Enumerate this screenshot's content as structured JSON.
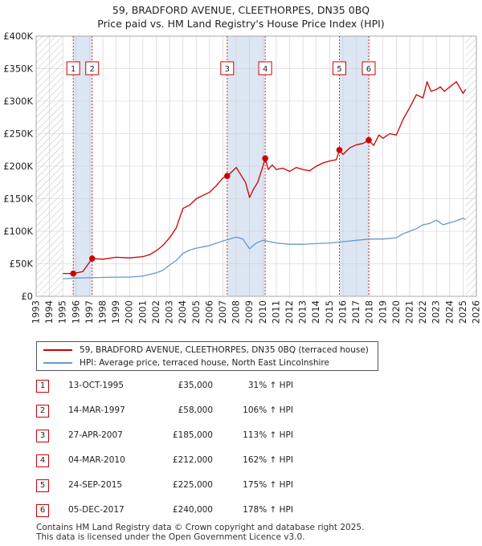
{
  "title_line1": "59, BRADFORD AVENUE, CLEETHORPES, DN35 0BQ",
  "title_line2": "Price paid vs. HM Land Registry's House Price Index (HPI)",
  "colors": {
    "price_line": "#cc0000",
    "hpi_line": "#6699cc",
    "sale_shade": "#dde6f3",
    "grid": "#cccccc",
    "marker_border": "#cc0000"
  },
  "chart_data": {
    "type": "line",
    "title": "59, BRADFORD AVENUE, CLEETHORPES, DN35 0BQ — Price paid vs. HM Land Registry's House Price Index (HPI)",
    "xlabel": "",
    "ylabel": "",
    "xlim": [
      1993,
      2026
    ],
    "ylim": [
      0,
      400000
    ],
    "grid": true,
    "legend_position": "below",
    "x_ticks": [
      1993,
      1994,
      1995,
      1996,
      1997,
      1998,
      1999,
      2000,
      2001,
      2002,
      2003,
      2004,
      2005,
      2006,
      2007,
      2008,
      2009,
      2010,
      2011,
      2012,
      2013,
      2014,
      2015,
      2016,
      2017,
      2018,
      2019,
      2020,
      2021,
      2022,
      2023,
      2024,
      2025,
      2026
    ],
    "y_ticks": [
      {
        "value": 0,
        "label": "£0"
      },
      {
        "value": 50000,
        "label": "£50K"
      },
      {
        "value": 100000,
        "label": "£100K"
      },
      {
        "value": 150000,
        "label": "£150K"
      },
      {
        "value": 200000,
        "label": "£200K"
      },
      {
        "value": 250000,
        "label": "£250K"
      },
      {
        "value": 300000,
        "label": "£300K"
      },
      {
        "value": 350000,
        "label": "£350K"
      },
      {
        "value": 400000,
        "label": "£400K"
      }
    ],
    "hatched_ranges": [
      [
        1993,
        1995
      ],
      [
        2025.2,
        2026
      ]
    ],
    "series": [
      {
        "name": "59, BRADFORD AVENUE, CLEETHORPES, DN35 0BQ (terraced house)",
        "color": "#cc0000",
        "x": [
          1995.0,
          1995.78,
          1996.5,
          1997.2,
          1998,
          1999,
          2000,
          2001,
          2001.5,
          2002,
          2002.5,
          2003,
          2003.5,
          2004,
          2004.5,
          2005,
          2005.5,
          2006,
          2006.5,
          2007.0,
          2007.32,
          2007.6,
          2008,
          2008.3,
          2008.7,
          2009.0,
          2009.3,
          2009.6,
          2010.0,
          2010.17,
          2010.4,
          2010.7,
          2011,
          2011.5,
          2012,
          2012.5,
          2013,
          2013.5,
          2014,
          2014.5,
          2015,
          2015.5,
          2015.73,
          2016,
          2016.5,
          2017,
          2017.5,
          2017.93,
          2018.3,
          2018.7,
          2019,
          2019.5,
          2020,
          2020.5,
          2021,
          2021.5,
          2022,
          2022.3,
          2022.6,
          2023,
          2023.3,
          2023.6,
          2024,
          2024.5,
          2025.0,
          2025.2
        ],
        "values": [
          35000,
          35000,
          38000,
          58000,
          57000,
          60000,
          59000,
          61000,
          64000,
          70000,
          78000,
          90000,
          105000,
          135000,
          140000,
          150000,
          155000,
          160000,
          170000,
          182000,
          185000,
          190000,
          198000,
          188000,
          175000,
          152000,
          165000,
          175000,
          200000,
          212000,
          195000,
          202000,
          195000,
          197000,
          192000,
          198000,
          195000,
          193000,
          200000,
          205000,
          208000,
          210000,
          225000,
          218000,
          228000,
          233000,
          235000,
          240000,
          232000,
          248000,
          243000,
          250000,
          248000,
          272000,
          290000,
          310000,
          305000,
          330000,
          315000,
          318000,
          322000,
          315000,
          322000,
          330000,
          312000,
          318000
        ]
      },
      {
        "name": "HPI: Average price, terraced house, North East Lincolnshire",
        "color": "#6699cc",
        "x": [
          1995,
          1996,
          1997,
          1998,
          1999,
          2000,
          2001,
          2002,
          2002.5,
          2003,
          2003.5,
          2004,
          2004.5,
          2005,
          2006,
          2007,
          2007.5,
          2008,
          2008.5,
          2009,
          2009.5,
          2010,
          2011,
          2012,
          2013,
          2014,
          2015,
          2016,
          2017,
          2018,
          2019,
          2020,
          2020.5,
          2021,
          2021.5,
          2022,
          2022.5,
          2023,
          2023.5,
          2024,
          2024.5,
          2025,
          2025.2
        ],
        "values": [
          27000,
          28000,
          28500,
          29000,
          29500,
          29500,
          31000,
          36000,
          40000,
          48000,
          55000,
          66000,
          71000,
          74000,
          78000,
          85000,
          88000,
          91000,
          88000,
          73000,
          82000,
          86000,
          82000,
          80000,
          80000,
          81000,
          82000,
          84000,
          86000,
          88000,
          88000,
          90000,
          96000,
          100000,
          104000,
          110000,
          112000,
          117000,
          110000,
          113000,
          116000,
          120000,
          118000
        ]
      }
    ],
    "sales_markers": [
      {
        "label": "1",
        "x": 1995.78,
        "y": 35000
      },
      {
        "label": "2",
        "x": 1997.2,
        "y": 58000
      },
      {
        "label": "3",
        "x": 2007.32,
        "y": 185000
      },
      {
        "label": "4",
        "x": 2010.17,
        "y": 212000
      },
      {
        "label": "5",
        "x": 2015.73,
        "y": 225000
      },
      {
        "label": "6",
        "x": 2017.93,
        "y": 240000
      }
    ],
    "shaded_spans": [
      [
        1995.78,
        1997.2
      ],
      [
        2007.32,
        2010.17
      ],
      [
        2015.73,
        2017.93
      ]
    ]
  },
  "legend": {
    "items": [
      {
        "label": "59, BRADFORD AVENUE, CLEETHORPES, DN35 0BQ (terraced house)",
        "color": "#cc0000"
      },
      {
        "label": "HPI: Average price, terraced house, North East Lincolnshire",
        "color": "#6699cc"
      }
    ]
  },
  "sales": [
    {
      "num": "1",
      "date": "13-OCT-1995",
      "price": "£35,000",
      "hpi": "31% ↑ HPI"
    },
    {
      "num": "2",
      "date": "14-MAR-1997",
      "price": "£58,000",
      "hpi": "106% ↑ HPI"
    },
    {
      "num": "3",
      "date": "27-APR-2007",
      "price": "£185,000",
      "hpi": "113% ↑ HPI"
    },
    {
      "num": "4",
      "date": "04-MAR-2010",
      "price": "£212,000",
      "hpi": "162% ↑ HPI"
    },
    {
      "num": "5",
      "date": "24-SEP-2015",
      "price": "£225,000",
      "hpi": "175% ↑ HPI"
    },
    {
      "num": "6",
      "date": "05-DEC-2017",
      "price": "£240,000",
      "hpi": "178% ↑ HPI"
    }
  ],
  "footer": {
    "line1": "Contains HM Land Registry data © Crown copyright and database right 2025.",
    "line2": "This data is licensed under the Open Government Licence v3.0."
  }
}
